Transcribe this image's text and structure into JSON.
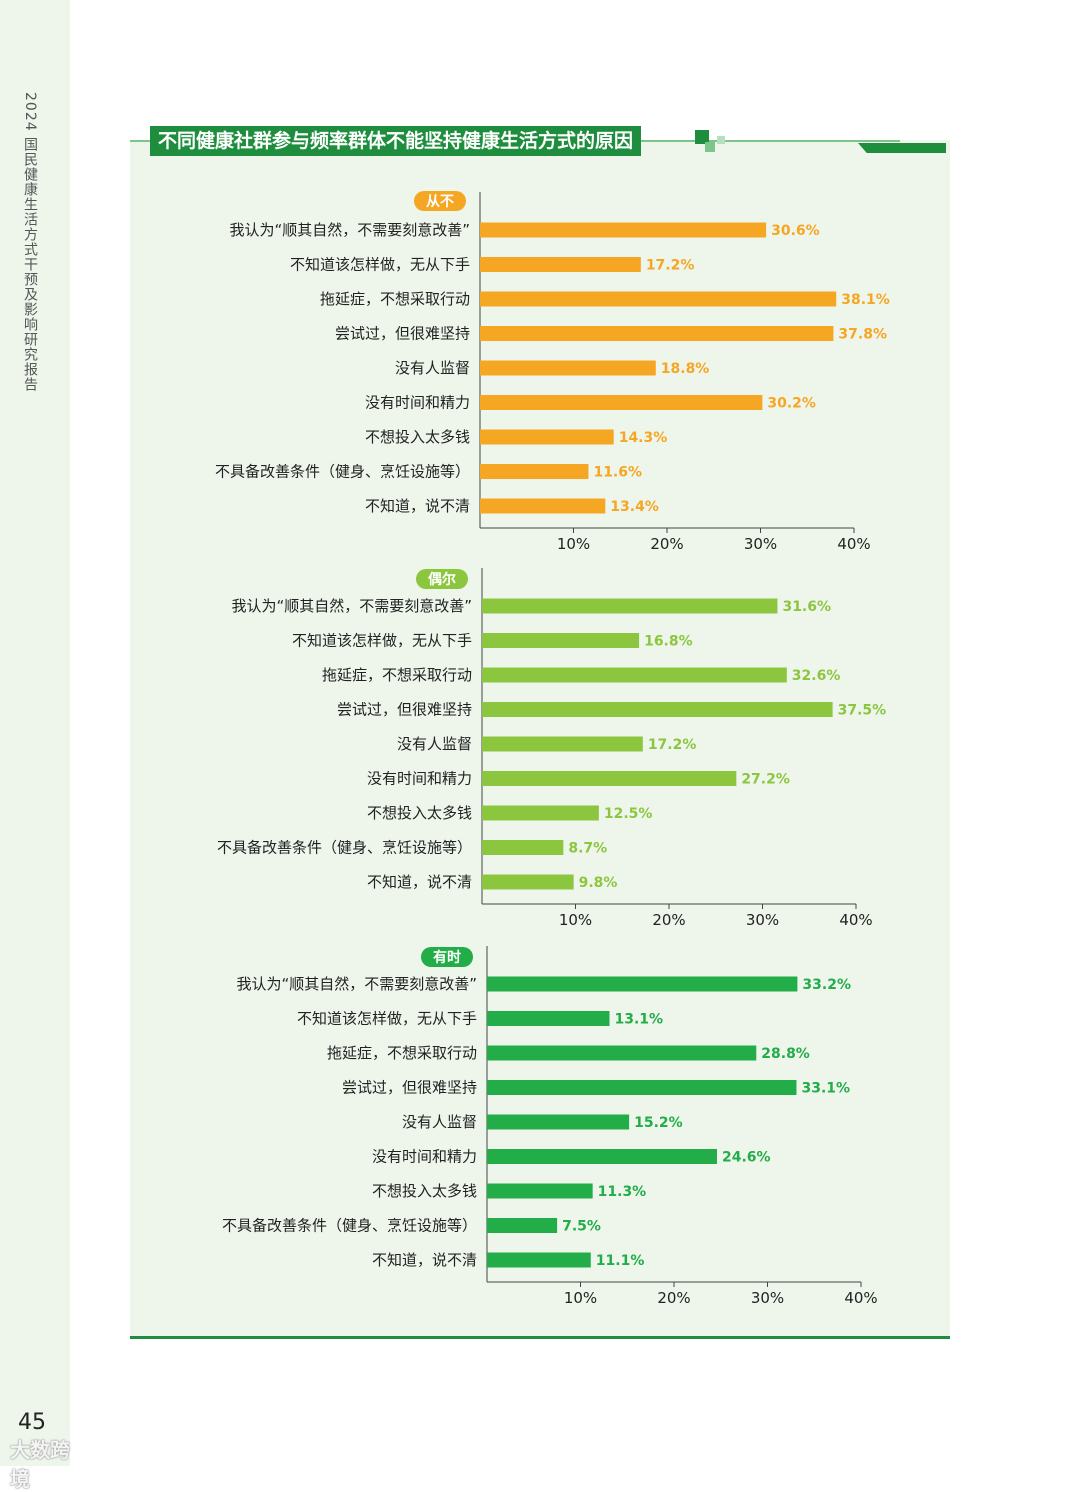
{
  "header": {
    "side_title": "2024 国民健康生活方式干预及影响研究报告",
    "page_number": "45",
    "watermark": "大数跨境"
  },
  "colors": {
    "orange": "#f5a623",
    "light_green": "#8cc63f",
    "green": "#22ad48",
    "dark_green": "#1e8e3e",
    "panel_bg": "#eef6ec"
  },
  "chart_data": [
    {
      "type": "bar",
      "orientation": "horizontal",
      "title": "不同健康社群参与频率群体不能坚持健康生活方式的原因",
      "series_name": "从不",
      "color": "#f5a623",
      "categories": [
        "我认为“顺其自然，不需要刻意改善”",
        "不知道该怎样做，无从下手",
        "拖延症，不想采取行动",
        "尝试过，但很难坚持",
        "没有人监督",
        "没有时间和精力",
        "不想投入太多钱",
        "不具备改善条件（健身、烹饪设施等）",
        "不知道，说不清"
      ],
      "values": [
        30.6,
        17.2,
        38.1,
        37.8,
        18.8,
        30.2,
        14.3,
        11.6,
        13.4
      ],
      "value_labels": [
        "30.6%",
        "17.2%",
        "38.1%",
        "37.8%",
        "18.8%",
        "30.2%",
        "14.3%",
        "11.6%",
        "13.4%"
      ],
      "xlim": [
        0,
        40
      ],
      "ticks": [
        "10%",
        "20%",
        "30%",
        "40%"
      ],
      "tick_values": [
        10,
        20,
        30,
        40
      ]
    },
    {
      "type": "bar",
      "orientation": "horizontal",
      "series_name": "偶尔",
      "color": "#8cc63f",
      "categories": [
        "我认为“顺其自然，不需要刻意改善”",
        "不知道该怎样做，无从下手",
        "拖延症，不想采取行动",
        "尝试过，但很难坚持",
        "没有人监督",
        "没有时间和精力",
        "不想投入太多钱",
        "不具备改善条件（健身、烹饪设施等）",
        "不知道，说不清"
      ],
      "values": [
        31.6,
        16.8,
        32.6,
        37.5,
        17.2,
        27.2,
        12.5,
        8.7,
        9.8
      ],
      "value_labels": [
        "31.6%",
        "16.8%",
        "32.6%",
        "37.5%",
        "17.2%",
        "27.2%",
        "12.5%",
        "8.7%",
        "9.8%"
      ],
      "xlim": [
        0,
        40
      ],
      "ticks": [
        "10%",
        "20%",
        "30%",
        "40%"
      ],
      "tick_values": [
        10,
        20,
        30,
        40
      ]
    },
    {
      "type": "bar",
      "orientation": "horizontal",
      "series_name": "有时",
      "color": "#22ad48",
      "categories": [
        "我认为“顺其自然，不需要刻意改善”",
        "不知道该怎样做，无从下手",
        "拖延症，不想采取行动",
        "尝试过，但很难坚持",
        "没有人监督",
        "没有时间和精力",
        "不想投入太多钱",
        "不具备改善条件（健身、烹饪设施等）",
        "不知道，说不清"
      ],
      "values": [
        33.2,
        13.1,
        28.8,
        33.1,
        15.2,
        24.6,
        11.3,
        7.5,
        11.1
      ],
      "value_labels": [
        "33.2%",
        "13.1%",
        "28.8%",
        "33.1%",
        "15.2%",
        "24.6%",
        "11.3%",
        "7.5%",
        "11.1%"
      ],
      "xlim": [
        0,
        40
      ],
      "ticks": [
        "10%",
        "20%",
        "30%",
        "40%"
      ],
      "tick_values": [
        10,
        20,
        30,
        40
      ]
    }
  ]
}
